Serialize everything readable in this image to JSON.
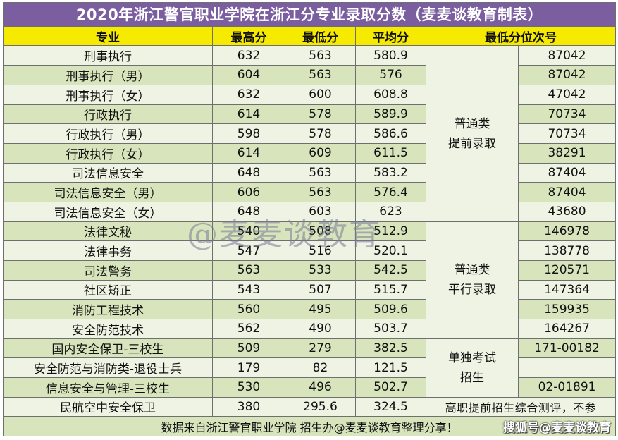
{
  "title": "2020年浙江警官职业学院在浙江分专业录取分数（麦麦谈教育制表）",
  "headers": [
    "专业",
    "最高分",
    "最低分",
    "平均分",
    "最低分位次号"
  ],
  "rows": [
    {
      "major": "刑事执行",
      "max": "632",
      "min": "563",
      "avg": "580.9",
      "rank": "87042"
    },
    {
      "major": "刑事执行（男）",
      "max": "604",
      "min": "563",
      "avg": "576",
      "rank": "87042"
    },
    {
      "major": "刑事执行（女）",
      "max": "632",
      "min": "600",
      "avg": "608.8",
      "rank": "47042"
    },
    {
      "major": "行政执行",
      "max": "614",
      "min": "578",
      "avg": "589.9",
      "rank": "70734"
    },
    {
      "major": "行政执行（男）",
      "max": "598",
      "min": "578",
      "avg": "586.6",
      "rank": "70734"
    },
    {
      "major": "行政执行（女）",
      "max": "614",
      "min": "609",
      "avg": "611.5",
      "rank": "38291"
    },
    {
      "major": "司法信息安全",
      "max": "648",
      "min": "563",
      "avg": "583.2",
      "rank": "87404"
    },
    {
      "major": "司法信息安全（男）",
      "max": "606",
      "min": "563",
      "avg": "576.4",
      "rank": "87404"
    },
    {
      "major": "司法信息安全（女）",
      "max": "648",
      "min": "603",
      "avg": "623",
      "rank": "43680"
    },
    {
      "major": "法律文秘",
      "max": "540",
      "min": "508",
      "avg": "512.9",
      "rank": "146978"
    },
    {
      "major": "法律事务",
      "max": "547",
      "min": "516",
      "avg": "520.1",
      "rank": "138778"
    },
    {
      "major": "司法警务",
      "max": "563",
      "min": "533",
      "avg": "542.5",
      "rank": "120571"
    },
    {
      "major": "社区矫正",
      "max": "543",
      "min": "507",
      "avg": "515.7",
      "rank": "147364"
    },
    {
      "major": "消防工程技术",
      "max": "560",
      "min": "495",
      "avg": "509.6",
      "rank": "159935"
    },
    {
      "major": "安全防范技术",
      "max": "562",
      "min": "490",
      "avg": "503.7",
      "rank": "164267"
    },
    {
      "major": "国内安全保卫-三校生",
      "max": "509",
      "min": "279",
      "avg": "382.5",
      "rank": "171-00182"
    },
    {
      "major": "安全防范与消防类-退役士兵",
      "max": "179",
      "min": "82",
      "avg": "121.5",
      "rank": ""
    },
    {
      "major": "信息安全与管理-三校生",
      "max": "530",
      "min": "496",
      "avg": "502.7",
      "rank": "02-01891"
    },
    {
      "major": "民航空中安全保卫",
      "max": "380",
      "min": "295.6",
      "avg": "324.5"
    }
  ],
  "groups": {
    "advance": {
      "line1": "普通类",
      "line2": "提前录取"
    },
    "parallel": {
      "line1": "普通类",
      "line2": "平行录取"
    },
    "single": {
      "line1": "单独考试",
      "line2": "招生"
    }
  },
  "last_row_note": "高职提前招生综合测评，不参",
  "footer": "数据来自浙江警官职业学院 招生办@麦麦谈教育整理分享！",
  "watermark": "@麦麦谈教育",
  "brand": "搜狐号@麦麦谈教育",
  "colors": {
    "title_bg": "#7b5ea0",
    "header_bg": "#f5ea00",
    "row_light": "#eef3e3",
    "row_dark": "#d8e4bc"
  }
}
